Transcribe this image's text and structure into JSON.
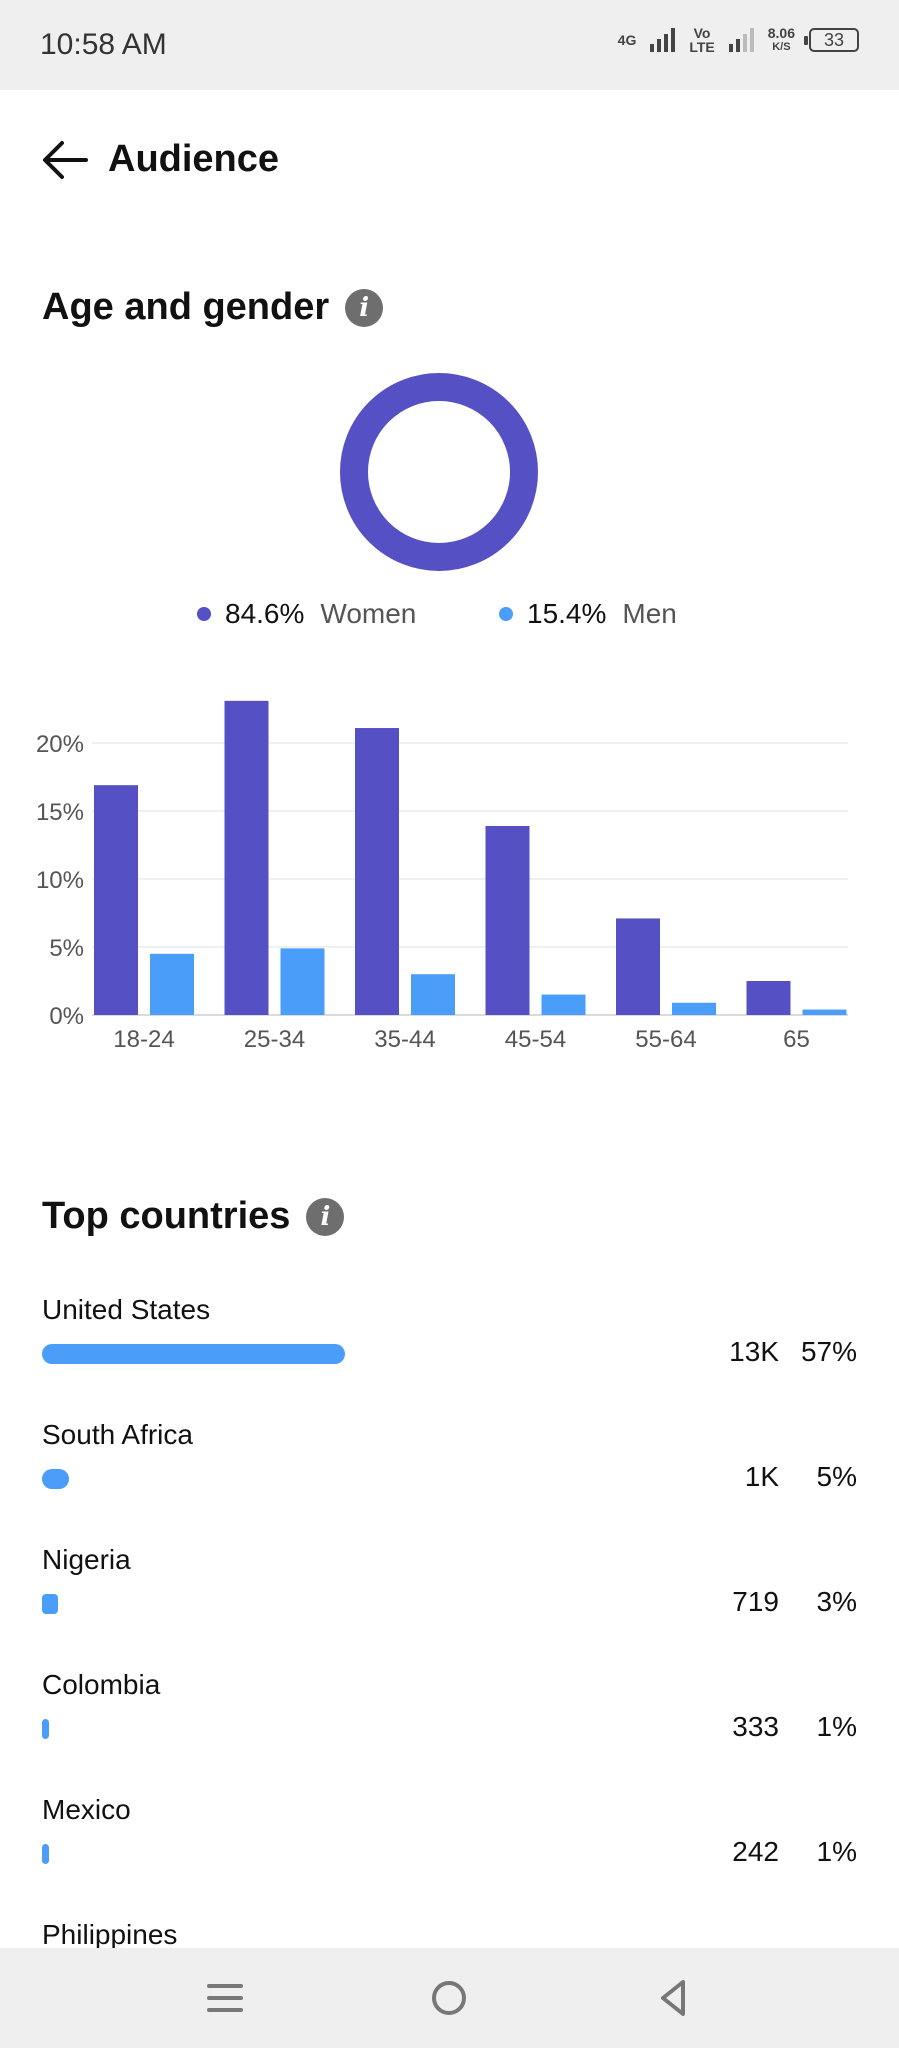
{
  "status_bar": {
    "time": "10:58 AM",
    "network_type": "4G",
    "volte_top": "Vo",
    "volte_bottom": "LTE",
    "speed_value": "8.06",
    "speed_unit": "K/S",
    "battery": "33"
  },
  "header": {
    "title": "Audience",
    "back_icon": "arrow-left-icon"
  },
  "age_gender": {
    "title": "Age and gender",
    "info_icon": "info-icon",
    "donut": {
      "women_fraction": 0.846,
      "men_fraction": 0.154
    },
    "legend": [
      {
        "pct": "84.6%",
        "label": "Women",
        "color": "#5550c4"
      },
      {
        "pct": "15.4%",
        "label": "Men",
        "color": "#4a9df8"
      }
    ]
  },
  "chart_data": {
    "type": "bar",
    "categories": [
      "18-24",
      "25-34",
      "35-44",
      "45-54",
      "55-64",
      "65"
    ],
    "series": [
      {
        "name": "Women",
        "color": "#5550c4",
        "values": [
          16.9,
          23.1,
          21.1,
          13.9,
          7.1,
          2.5
        ]
      },
      {
        "name": "Men",
        "color": "#4a9df8",
        "values": [
          4.5,
          4.9,
          3.0,
          1.5,
          0.9,
          0.4
        ]
      }
    ],
    "y_ticks": [
      "0%",
      "5%",
      "10%",
      "15%",
      "20%"
    ],
    "ylim": [
      0,
      25
    ],
    "grid": true
  },
  "top_countries": {
    "title": "Top countries",
    "info_icon": "info-icon",
    "items": [
      {
        "name": "United States",
        "count": "13K",
        "pct": "57%",
        "share": 57
      },
      {
        "name": "South Africa",
        "count": "1K",
        "pct": "5%",
        "share": 5
      },
      {
        "name": "Nigeria",
        "count": "719",
        "pct": "3%",
        "share": 3
      },
      {
        "name": "Colombia",
        "count": "333",
        "pct": "1%",
        "share": 1
      },
      {
        "name": "Mexico",
        "count": "242",
        "pct": "1%",
        "share": 1
      },
      {
        "name": "Philippines",
        "count": "",
        "pct": "",
        "share": 0
      }
    ]
  },
  "nav_bar": {
    "menu_icon": "menu-icon",
    "home_icon": "home-circle-icon",
    "back_icon": "back-triangle-icon"
  }
}
